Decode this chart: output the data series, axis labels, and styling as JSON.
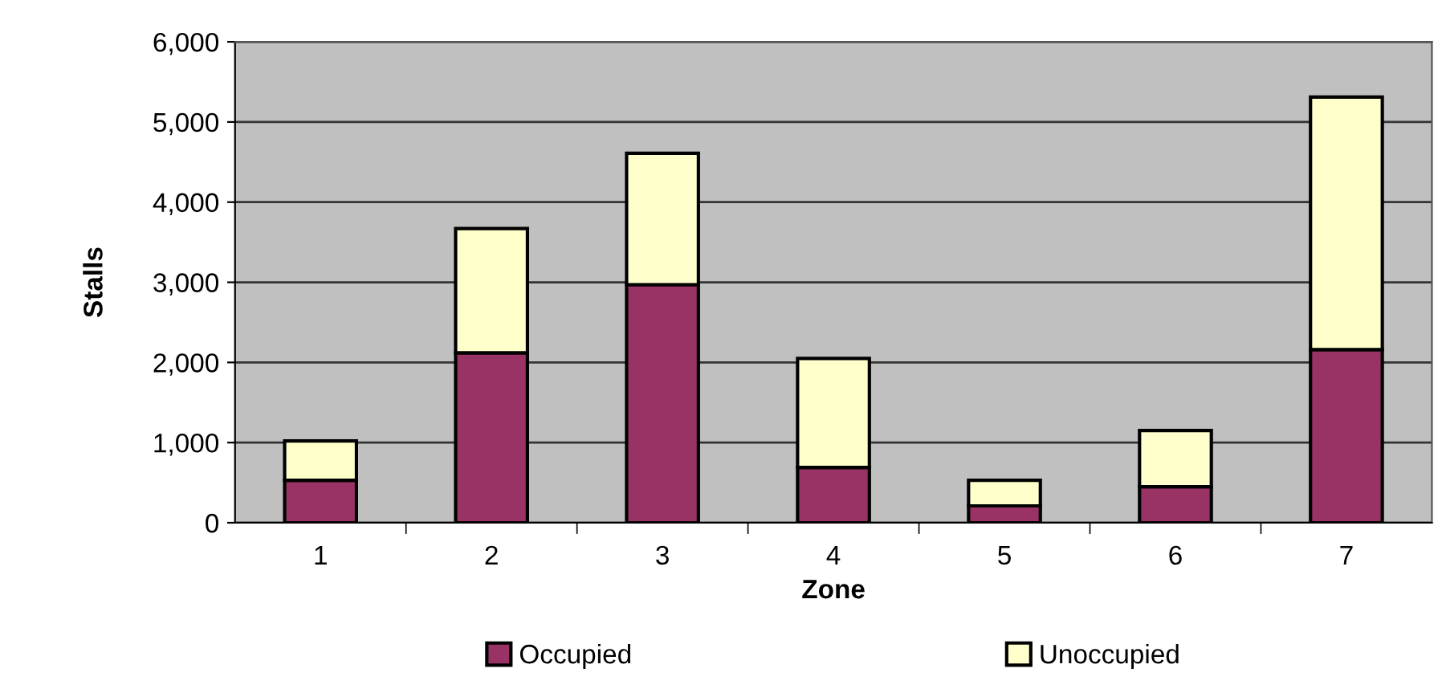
{
  "chart_data": {
    "type": "bar",
    "stacked": true,
    "xlabel": "Zone",
    "ylabel": "Stalls",
    "categories": [
      "1",
      "2",
      "3",
      "4",
      "5",
      "6",
      "7"
    ],
    "series": [
      {
        "name": "Occupied",
        "color": "#993366",
        "values": [
          530,
          2120,
          2970,
          690,
          210,
          450,
          2160
        ]
      },
      {
        "name": "Unoccupied",
        "color": "#ffffcc",
        "values": [
          490,
          1550,
          1640,
          1360,
          320,
          700,
          3150
        ]
      }
    ],
    "ylim": [
      0,
      6000
    ],
    "yticks": [
      {
        "value": 0,
        "label": "0"
      },
      {
        "value": 1000,
        "label": "1,000"
      },
      {
        "value": 2000,
        "label": "2,000"
      },
      {
        "value": 3000,
        "label": "3,000"
      },
      {
        "value": 4000,
        "label": "4,000"
      },
      {
        "value": 5000,
        "label": "5,000"
      },
      {
        "value": 6000,
        "label": "6,000"
      }
    ],
    "grid": "y",
    "legend": "bottom"
  }
}
